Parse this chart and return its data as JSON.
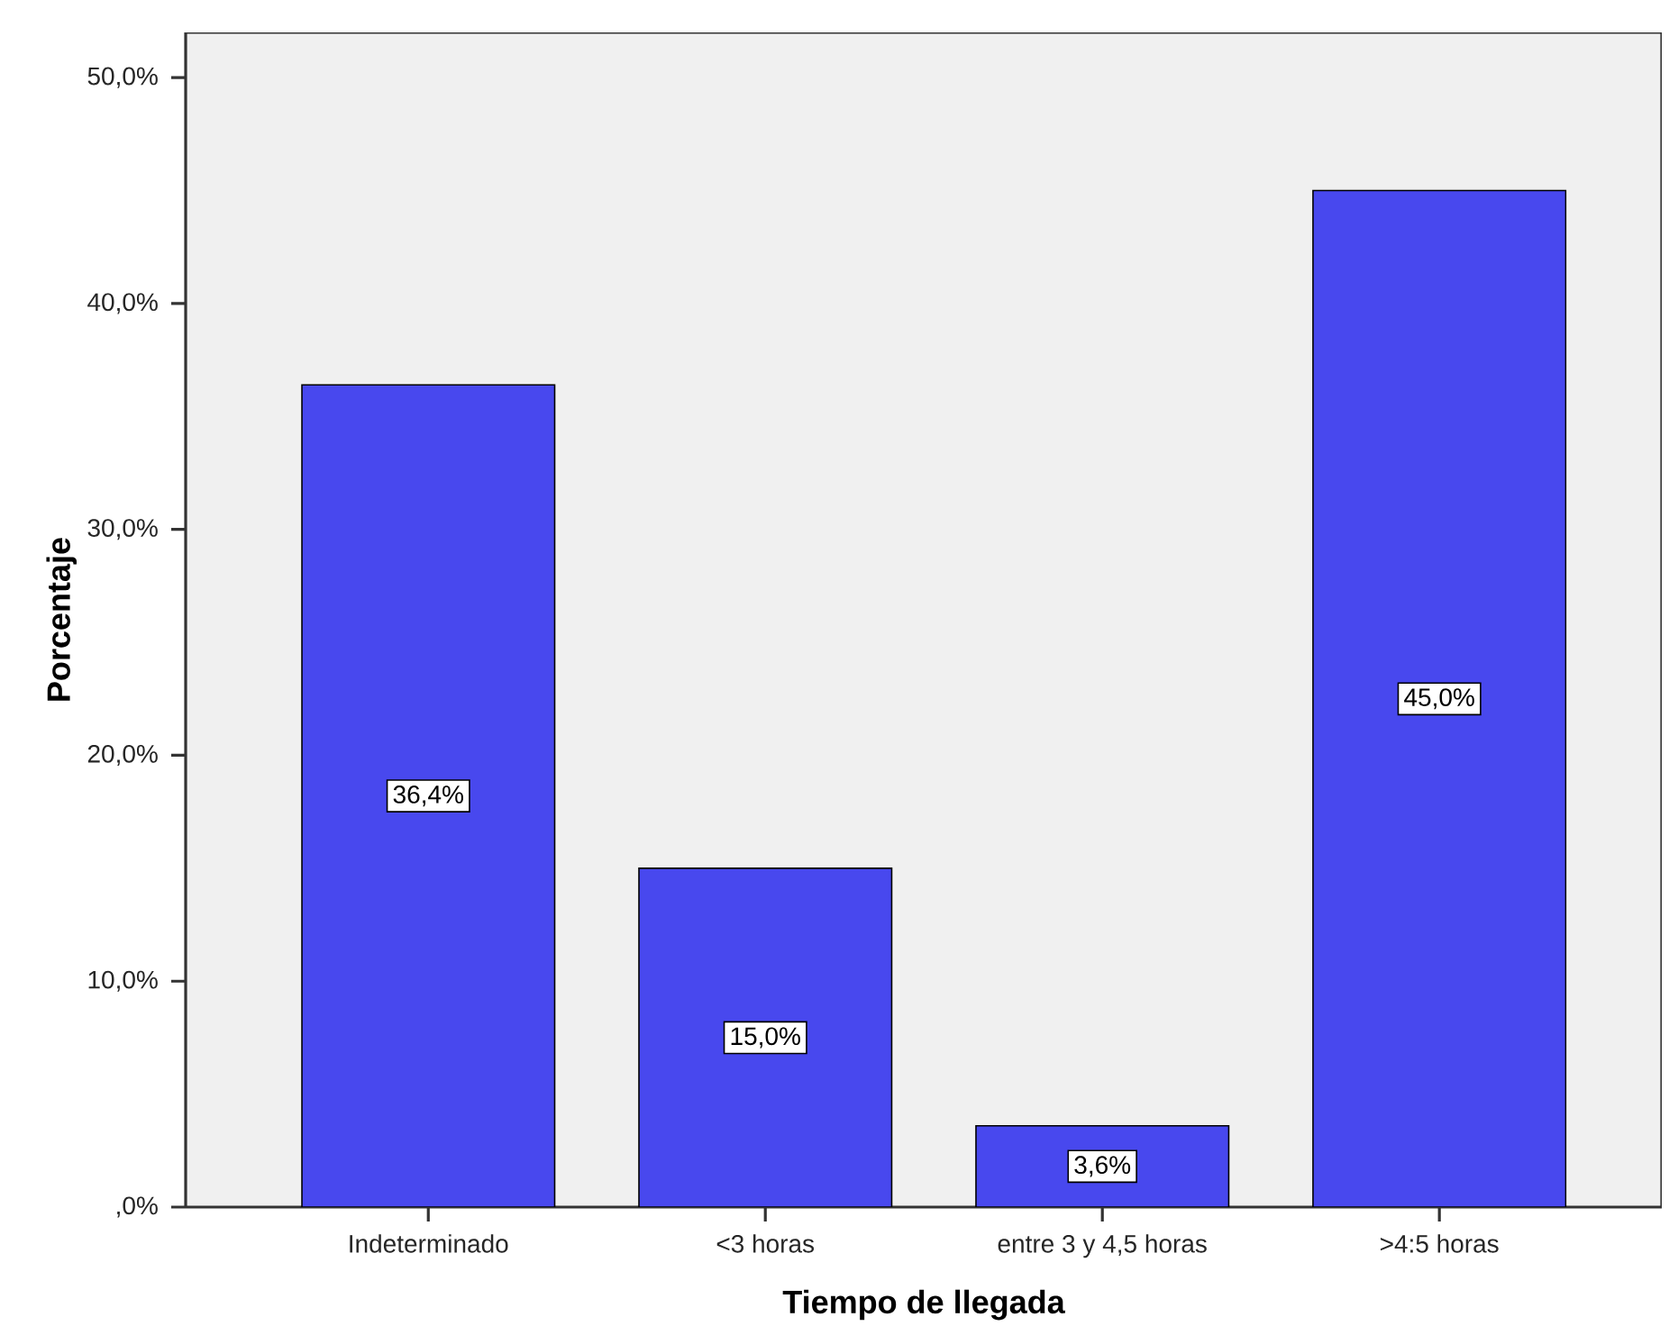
{
  "chart_data": {
    "type": "bar",
    "xlabel": "Tiempo de llegada",
    "ylabel": "Porcentaje",
    "categories": [
      "Indeterminado",
      "<3 horas",
      "entre 3 y 4,5 horas",
      ">4:5 horas"
    ],
    "values": [
      36.4,
      15.0,
      3.6,
      45.0
    ],
    "value_labels": [
      "36,4%",
      "15,0%",
      "3,6%",
      "45,0%"
    ],
    "color": "#4848ee",
    "ylim": [
      0,
      52
    ],
    "yticks": [
      {
        "value": 0,
        "label": ",0%"
      },
      {
        "value": 10,
        "label": "10,0%"
      },
      {
        "value": 20,
        "label": "20,0%"
      },
      {
        "value": 30,
        "label": "30,0%"
      },
      {
        "value": 40,
        "label": "40,0%"
      },
      {
        "value": 50,
        "label": "50,0%"
      }
    ],
    "grid": false
  }
}
